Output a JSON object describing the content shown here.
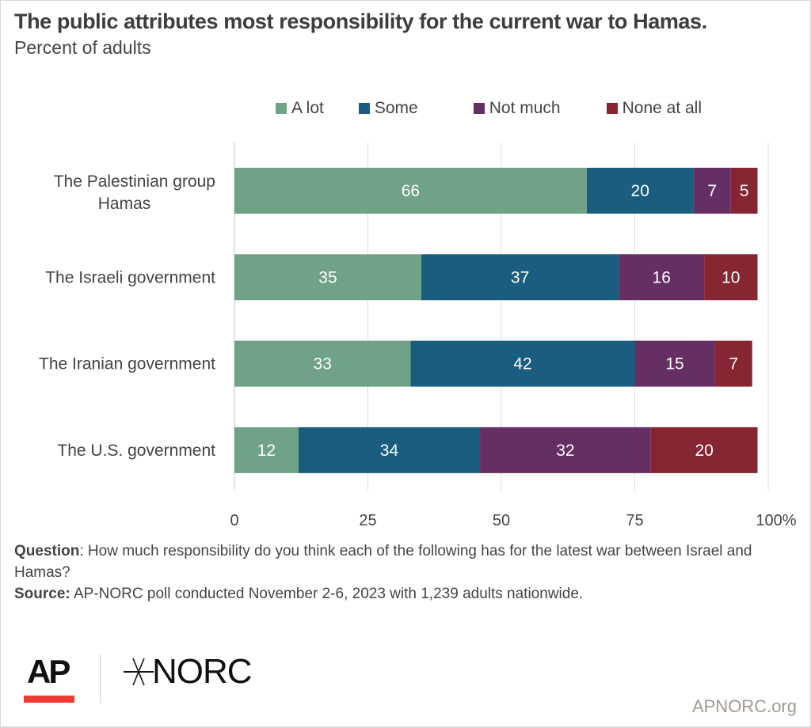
{
  "header": {
    "title": "The public attributes most responsibility for the current war to Hamas.",
    "subtitle": "Percent of adults"
  },
  "chart_data": {
    "type": "bar",
    "orientation": "horizontal",
    "stacked": true,
    "title": "The public attributes most responsibility for the current war to Hamas.",
    "subtitle": "Percent of adults",
    "categories": [
      [
        "The Palestinian group",
        "Hamas"
      ],
      [
        "The Israeli government"
      ],
      [
        "The Iranian government"
      ],
      [
        "The U.S. government"
      ]
    ],
    "series": [
      {
        "name": "A lot",
        "color": "#6fa287",
        "values": [
          66,
          35,
          33,
          12
        ]
      },
      {
        "name": "Some",
        "color": "#1a5d7e",
        "values": [
          20,
          37,
          42,
          34
        ]
      },
      {
        "name": "Not much",
        "color": "#662f63",
        "values": [
          7,
          16,
          15,
          32
        ]
      },
      {
        "name": "None at all",
        "color": "#862632",
        "values": [
          5,
          10,
          7,
          20
        ]
      }
    ],
    "xlim": [
      0,
      100
    ],
    "xticks": [
      "0",
      "25",
      "50",
      "75",
      "100%"
    ],
    "xtick_values": [
      0,
      25,
      50,
      75,
      100
    ],
    "grid": true,
    "legend_position": "top",
    "xlabel": "",
    "ylabel": ""
  },
  "notes": {
    "question_label": "Question",
    "question_text": ": How much responsibility do you think each of the following has for the latest war between Israel and Hamas?",
    "source_label": "Source:",
    "source_text": " AP-NORC poll conducted November 2-6, 2023 with 1,239 adults nationwide."
  },
  "footer": {
    "ap_logo": "AP",
    "norc_logo": "NORC",
    "site": "APNORC.org"
  }
}
